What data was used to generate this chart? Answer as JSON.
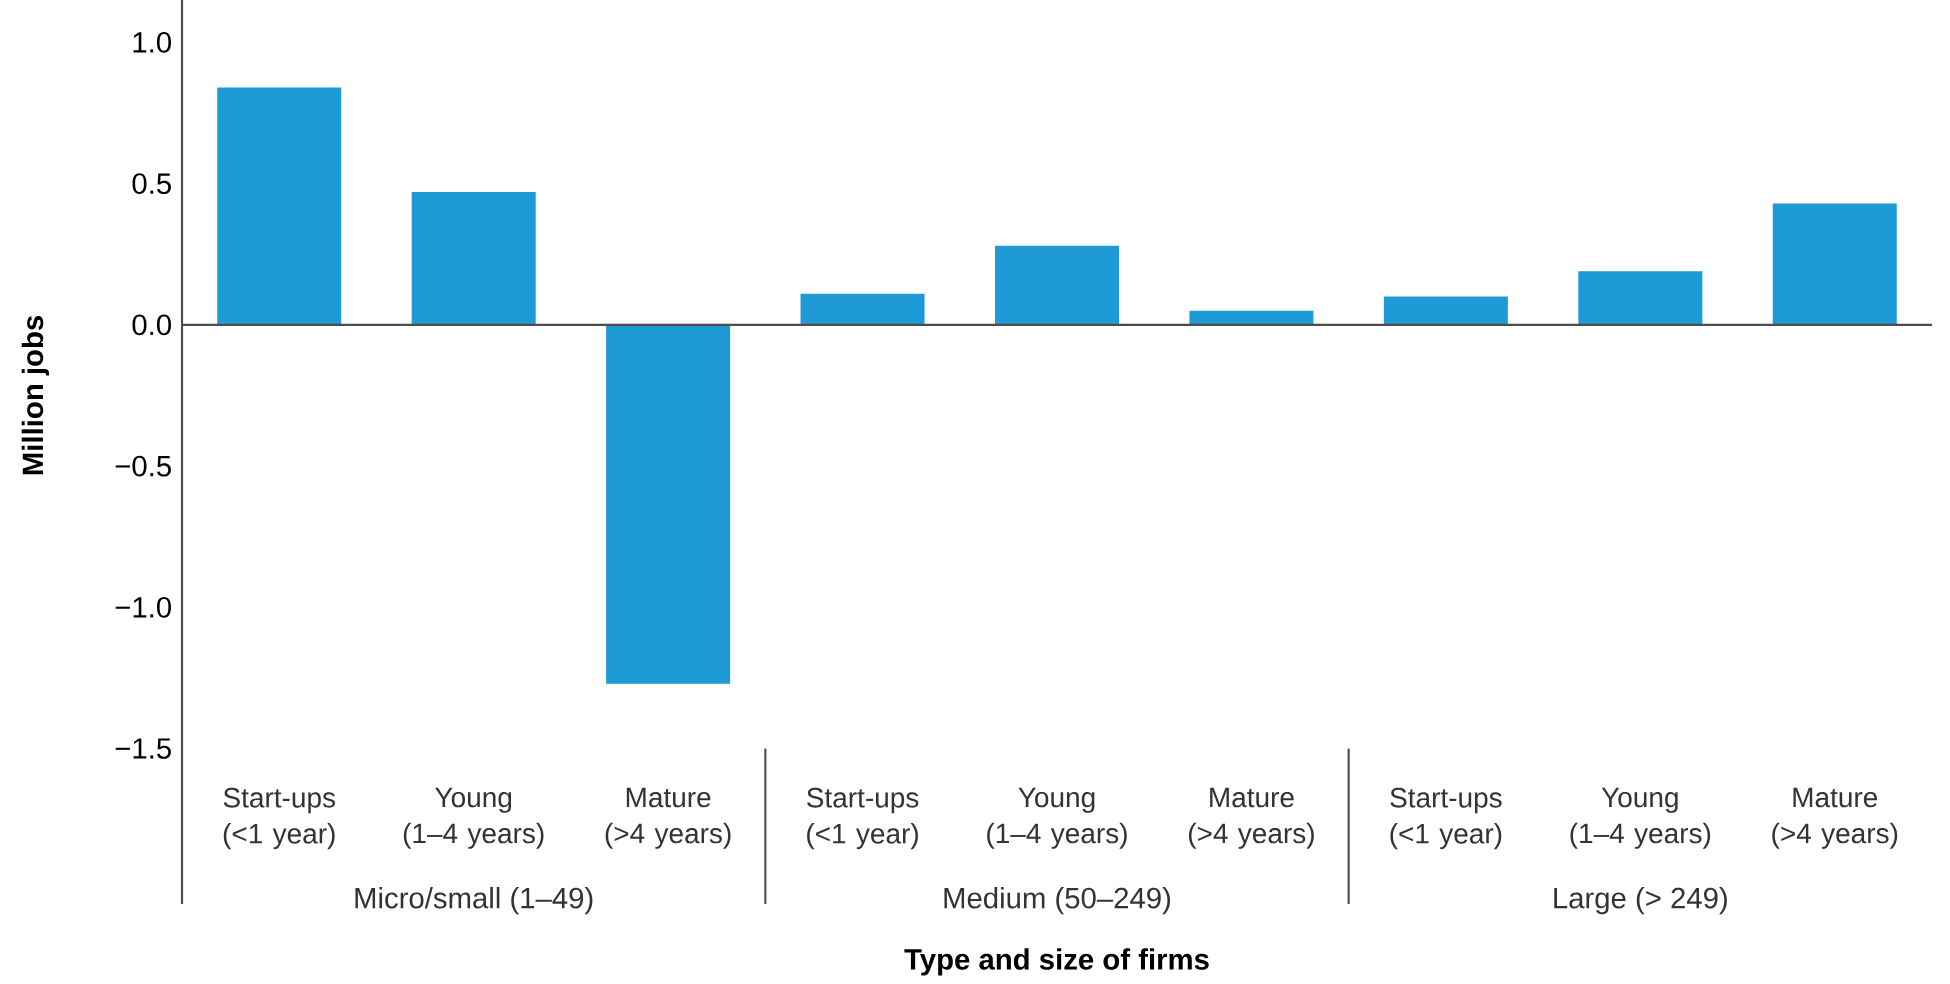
{
  "chart_data": {
    "type": "bar",
    "xlabel": "Type and size of firms",
    "ylabel": "Million jobs",
    "categories": [
      "Start-ups (<1 year)",
      "Young (1–4 years)",
      "Mature (>4 years)",
      "Start-ups (<1 year)",
      "Young (1–4 years)",
      "Mature (>4 years)",
      "Start-ups (<1 year)",
      "Young (1–4 years)",
      "Mature (>4 years)"
    ],
    "values": [
      0.84,
      0.47,
      -1.27,
      0.11,
      0.28,
      0.05,
      0.1,
      0.19,
      0.43
    ],
    "color": "#1e9ad6",
    "ylim": [
      -2.05,
      1.15
    ],
    "yticks": [
      {
        "value": -1.5,
        "label": "−1.5"
      },
      {
        "value": -1.0,
        "label": "−1.0"
      },
      {
        "value": -0.5,
        "label": "−0.5"
      },
      {
        "value": 0,
        "label": "0.0"
      },
      {
        "value": 0.5,
        "label": "0.5"
      },
      {
        "value": 1.0,
        "label": "1.0"
      }
    ],
    "annotations": [
      "Micro/small (1–49)",
      "Medium (50–249)",
      "Large (> 249)"
    ]
  }
}
